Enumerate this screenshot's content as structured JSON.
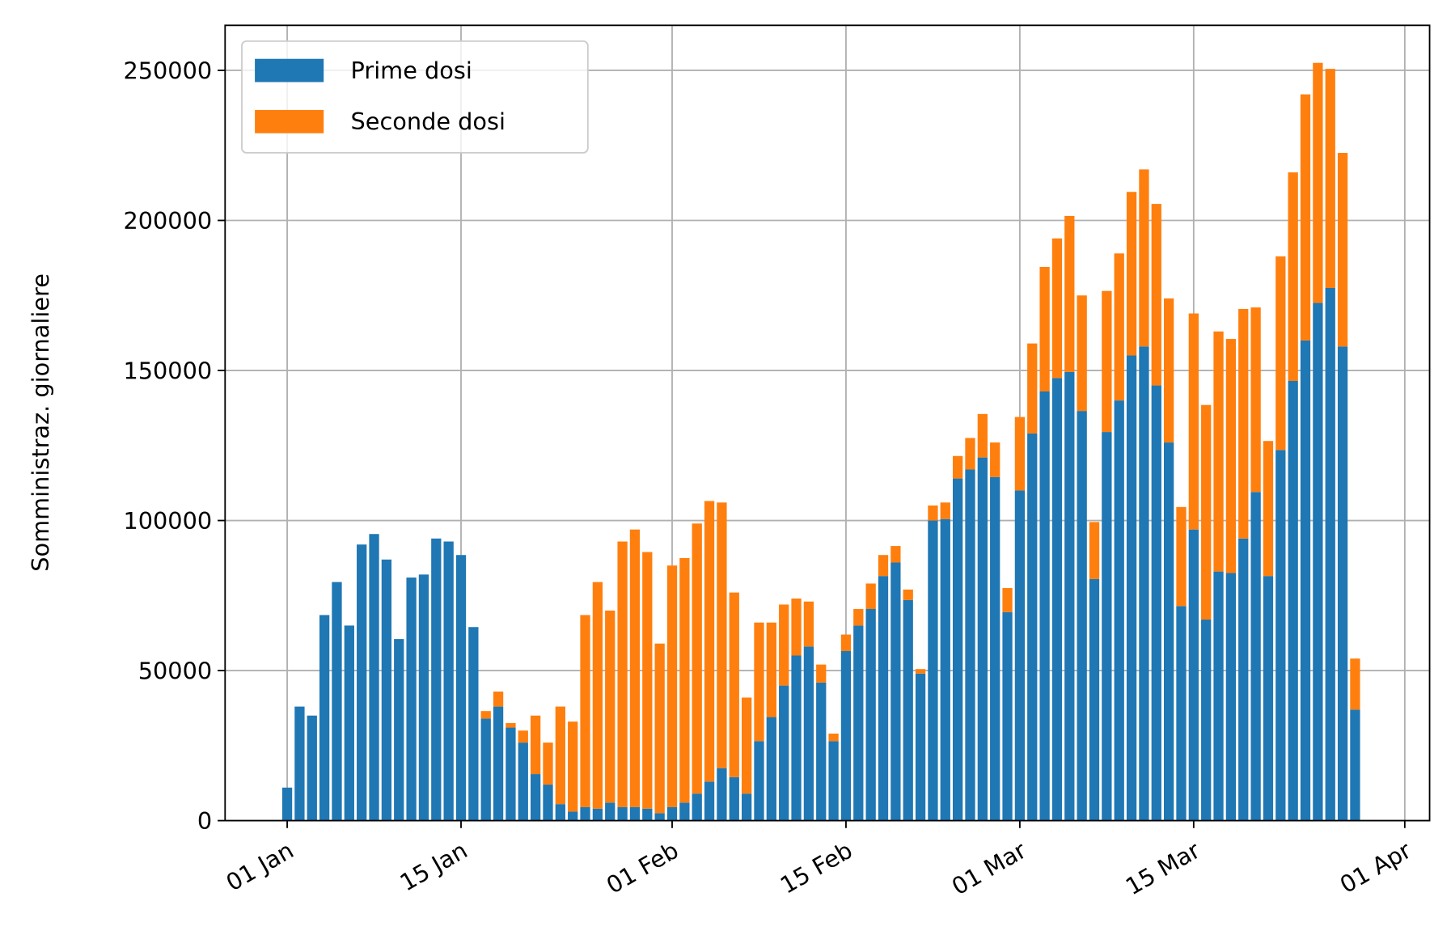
{
  "chart_data": {
    "type": "stacked_bar",
    "ylabel": "Somministraz. giornaliere",
    "x": [
      "01-01",
      "01-02",
      "01-03",
      "01-04",
      "01-05",
      "01-06",
      "01-07",
      "01-08",
      "01-09",
      "01-10",
      "01-11",
      "01-12",
      "01-13",
      "01-14",
      "01-15",
      "01-16",
      "01-17",
      "01-18",
      "01-19",
      "01-20",
      "01-21",
      "01-22",
      "01-23",
      "01-24",
      "01-25",
      "01-26",
      "01-27",
      "01-28",
      "01-29",
      "01-30",
      "01-31",
      "02-01",
      "02-02",
      "02-03",
      "02-04",
      "02-05",
      "02-06",
      "02-07",
      "02-08",
      "02-09",
      "02-10",
      "02-11",
      "02-12",
      "02-13",
      "02-14",
      "02-15",
      "02-16",
      "02-17",
      "02-18",
      "02-19",
      "02-20",
      "02-21",
      "02-22",
      "02-23",
      "02-24",
      "02-25",
      "02-26",
      "02-27",
      "02-28",
      "03-01",
      "03-02",
      "03-03",
      "03-04",
      "03-05",
      "03-06",
      "03-07",
      "03-08",
      "03-09",
      "03-10",
      "03-11",
      "03-12",
      "03-13",
      "03-14",
      "03-15",
      "03-16",
      "03-17",
      "03-18",
      "03-19",
      "03-20",
      "03-21",
      "03-22",
      "03-23",
      "03-24",
      "03-25",
      "03-26",
      "03-27",
      "03-28"
    ],
    "series": [
      {
        "name": "Prime dosi",
        "color": "#1f77b4",
        "values": [
          11000,
          38000,
          35000,
          68500,
          79500,
          65000,
          92000,
          95500,
          87000,
          60500,
          81000,
          82000,
          94000,
          93000,
          88500,
          64500,
          34000,
          38000,
          31000,
          26000,
          15500,
          12000,
          5500,
          3000,
          4500,
          4000,
          6000,
          4500,
          4500,
          4000,
          2500,
          4500,
          6000,
          9000,
          13000,
          17500,
          14500,
          9000,
          26500,
          34500,
          45000,
          55000,
          58000,
          46000,
          26500,
          56500,
          65000,
          70500,
          81500,
          86000,
          73500,
          49000,
          100000,
          100500,
          114000,
          117000,
          121000,
          114500,
          69500,
          110000,
          129000,
          143000,
          147500,
          149500,
          136500,
          80500,
          129500,
          140000,
          155000,
          158000,
          145000,
          126000,
          71500,
          97000,
          67000,
          83000,
          82500,
          94000,
          109500,
          81500,
          123500,
          146500,
          160000,
          172500,
          177500,
          158000,
          37000
        ]
      },
      {
        "name": "Seconde dosi",
        "color": "#ff7f0e",
        "values": [
          0,
          0,
          0,
          0,
          0,
          0,
          0,
          0,
          0,
          0,
          0,
          0,
          0,
          0,
          0,
          0,
          2500,
          5000,
          1500,
          4000,
          19500,
          14000,
          32500,
          30000,
          64000,
          75500,
          64000,
          88500,
          92500,
          85500,
          56500,
          80500,
          81500,
          90000,
          93500,
          88500,
          61500,
          32000,
          39500,
          31500,
          27000,
          19000,
          15000,
          6000,
          2500,
          5500,
          5500,
          8500,
          7000,
          5500,
          3500,
          1500,
          5000,
          5500,
          7500,
          10500,
          14500,
          11500,
          8000,
          24500,
          30000,
          41500,
          46500,
          52000,
          38500,
          19000,
          47000,
          49000,
          54500,
          59000,
          60500,
          48000,
          33000,
          72000,
          71500,
          80000,
          78000,
          76500,
          61500,
          45000,
          64500,
          69500,
          82000,
          80000,
          73000,
          64500,
          17000
        ]
      }
    ],
    "xlim": [
      "12-27",
      "04-03"
    ],
    "xticks": [
      {
        "value": "01-01",
        "label": "01 Jan"
      },
      {
        "value": "01-15",
        "label": "15 Jan"
      },
      {
        "value": "02-01",
        "label": "01 Feb"
      },
      {
        "value": "02-15",
        "label": "15 Feb"
      },
      {
        "value": "03-01",
        "label": "01 Mar"
      },
      {
        "value": "03-15",
        "label": "15 Mar"
      },
      {
        "value": "04-01",
        "label": "01 Apr"
      }
    ],
    "ylim": [
      0,
      265000
    ],
    "yticks": [
      0,
      50000,
      100000,
      150000,
      200000,
      250000
    ],
    "grid": true,
    "legend": "upper left"
  }
}
